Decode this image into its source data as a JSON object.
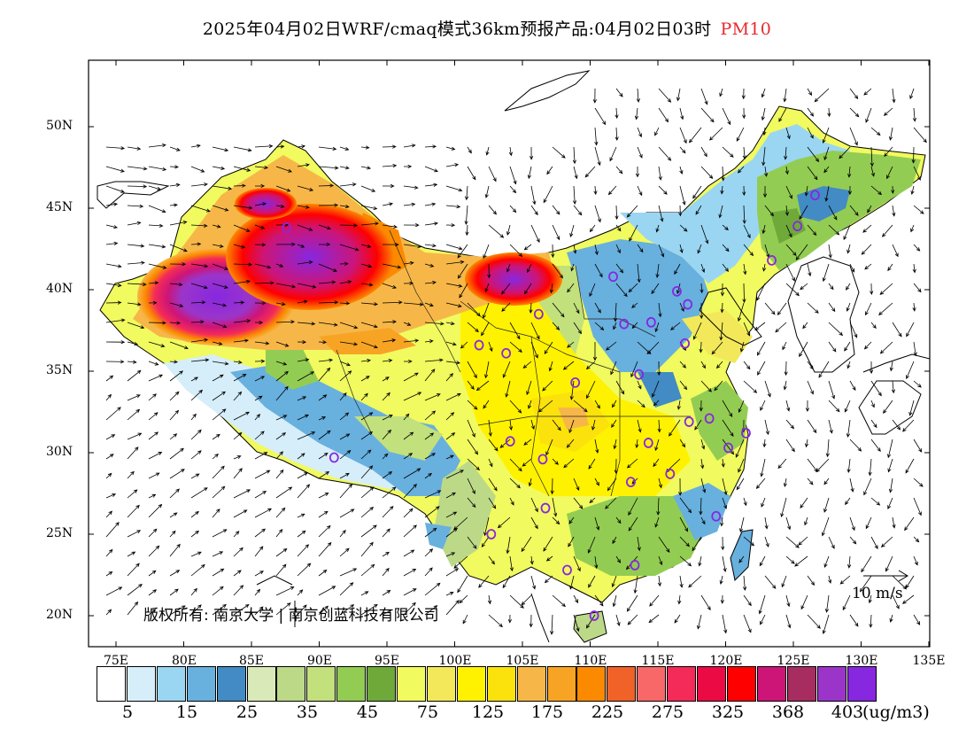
{
  "title": {
    "main": "2025年04月02日WRF/cmaq模式36km预报产品:04月02日03时",
    "pollutant": "PM10",
    "pollutant_color": "#e8282e"
  },
  "axes": {
    "lat_labels": [
      "50N",
      "45N",
      "40N",
      "35N",
      "30N",
      "25N",
      "20N"
    ],
    "lon_labels": [
      "75E",
      "80E",
      "85E",
      "90E",
      "95E",
      "100E",
      "105E",
      "110E",
      "115E",
      "120E",
      "125E",
      "130E",
      "135E"
    ]
  },
  "wind_reference": {
    "label": "10 m/s"
  },
  "copyright": {
    "text": "版权所有: 南京大学 | 南京创蓝科技有限公司"
  },
  "color_scale": {
    "colors": [
      "#ffffff",
      "#d6eefa",
      "#9ad6f2",
      "#68b0de",
      "#428bc4",
      "#d9eab8",
      "#bcd988",
      "#c2e07c",
      "#93cc52",
      "#6ea93a",
      "#f1fa5e",
      "#f2e85a",
      "#fff200",
      "#fbe20c",
      "#f7b748",
      "#f7a424",
      "#fc8a00",
      "#f06228",
      "#f86868",
      "#f42a58",
      "#ec0a44",
      "#fe0000",
      "#cc1577",
      "#a72d60",
      "#9b35c9",
      "#8727e0"
    ],
    "labels": [
      "5",
      "15",
      "25",
      "35",
      "45",
      "75",
      "125",
      "175",
      "225",
      "275",
      "325",
      "368",
      "403"
    ],
    "unit": "(ug/m3)"
  },
  "stations": [
    [
      87.6,
      43.8
    ],
    [
      91.1,
      29.7
    ],
    [
      101.8,
      36.6
    ],
    [
      103.8,
      36.1
    ],
    [
      106.2,
      38.5
    ],
    [
      108.9,
      34.3
    ],
    [
      111.7,
      40.8
    ],
    [
      112.5,
      37.9
    ],
    [
      114.5,
      38.0
    ],
    [
      116.4,
      39.9
    ],
    [
      117.2,
      39.1
    ],
    [
      117.0,
      36.7
    ],
    [
      113.6,
      34.8
    ],
    [
      114.3,
      30.6
    ],
    [
      113.0,
      28.2
    ],
    [
      115.9,
      28.7
    ],
    [
      117.3,
      31.9
    ],
    [
      118.8,
      32.1
    ],
    [
      120.2,
      30.3
    ],
    [
      121.5,
      31.2
    ],
    [
      119.3,
      26.1
    ],
    [
      104.1,
      30.7
    ],
    [
      106.5,
      29.6
    ],
    [
      106.7,
      26.6
    ],
    [
      102.7,
      25.0
    ],
    [
      108.3,
      22.8
    ],
    [
      113.3,
      23.1
    ],
    [
      110.3,
      20.0
    ],
    [
      123.4,
      41.8
    ],
    [
      125.3,
      43.9
    ],
    [
      126.6,
      45.8
    ]
  ]
}
